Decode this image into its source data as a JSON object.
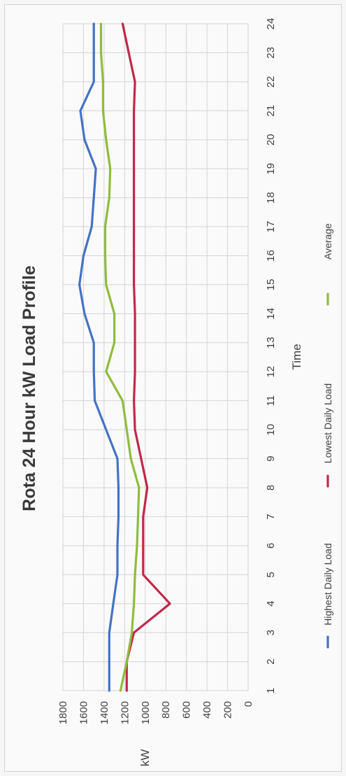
{
  "chart_data": {
    "type": "line",
    "title": "Rota 24 Hour kW Load Profile",
    "xlabel": "Time",
    "ylabel": "kW",
    "x": [
      1,
      2,
      3,
      4,
      5,
      6,
      7,
      8,
      9,
      10,
      11,
      12,
      13,
      14,
      15,
      16,
      17,
      18,
      19,
      20,
      21,
      22,
      23,
      24
    ],
    "ylim": [
      0,
      1800
    ],
    "yticks": [
      0,
      200,
      400,
      600,
      800,
      1000,
      1200,
      1400,
      1600,
      1800
    ],
    "grid": true,
    "legend_position": "bottom",
    "series": [
      {
        "name": "Highest Daily Load",
        "color": "#4472c4",
        "values": [
          1350,
          1350,
          1350,
          1310,
          1270,
          1270,
          1260,
          1260,
          1270,
          1380,
          1490,
          1500,
          1500,
          1590,
          1640,
          1600,
          1520,
          1500,
          1480,
          1590,
          1630,
          1500,
          1500,
          1500
        ]
      },
      {
        "name": "Lowest Daily Load",
        "color": "#c0294a",
        "values": [
          1180,
          1180,
          1110,
          760,
          1020,
          1020,
          1020,
          980,
          1040,
          1100,
          1110,
          1100,
          1100,
          1100,
          1110,
          1110,
          1110,
          1110,
          1110,
          1110,
          1110,
          1100,
          1160,
          1220
        ]
      },
      {
        "name": "Average",
        "color": "#8fbc3f",
        "values": [
          1240,
          1180,
          1130,
          1110,
          1100,
          1080,
          1070,
          1060,
          1140,
          1180,
          1220,
          1380,
          1300,
          1300,
          1380,
          1390,
          1390,
          1350,
          1340,
          1380,
          1410,
          1410,
          1430,
          1430
        ]
      }
    ]
  }
}
